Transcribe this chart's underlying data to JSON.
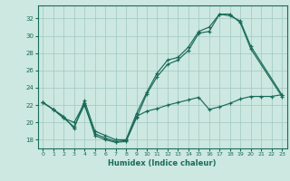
{
  "xlabel": "Humidex (Indice chaleur)",
  "xlim": [
    -0.5,
    23.5
  ],
  "ylim": [
    17,
    33.5
  ],
  "yticks": [
    18,
    20,
    22,
    24,
    26,
    28,
    30,
    32
  ],
  "xticks": [
    0,
    1,
    2,
    3,
    4,
    5,
    6,
    7,
    8,
    9,
    10,
    11,
    12,
    13,
    14,
    15,
    16,
    17,
    18,
    19,
    20,
    21,
    22,
    23
  ],
  "background_color": "#cce8e0",
  "grid_color": "#a0c8c0",
  "line_color": "#1a6b5a",
  "line1_x": [
    0,
    1,
    2,
    3,
    4,
    5,
    6,
    7,
    8,
    9,
    10,
    11,
    12,
    13,
    14,
    15,
    16,
    17,
    18,
    19,
    20,
    23
  ],
  "line1_y": [
    22.3,
    21.5,
    20.5,
    20.0,
    22.2,
    18.5,
    18.0,
    17.7,
    17.8,
    20.5,
    23.3,
    25.3,
    26.7,
    27.2,
    28.3,
    30.3,
    30.5,
    32.5,
    32.5,
    31.5,
    28.5,
    23.0
  ],
  "line2_x": [
    0,
    1,
    2,
    3,
    4,
    5,
    6,
    7,
    8,
    9,
    10,
    11,
    12,
    13,
    14,
    15,
    16,
    17,
    18,
    19,
    20,
    23
  ],
  "line2_y": [
    22.3,
    21.5,
    20.7,
    19.3,
    22.5,
    19.0,
    18.5,
    18.0,
    18.0,
    21.0,
    23.5,
    25.7,
    27.2,
    27.5,
    28.7,
    30.5,
    31.0,
    32.5,
    32.3,
    31.7,
    28.8,
    23.2
  ],
  "line3_x": [
    0,
    1,
    2,
    3,
    4,
    5,
    6,
    7,
    8,
    9,
    10,
    11,
    12,
    13,
    14,
    15,
    16,
    17,
    18,
    19,
    20,
    21,
    22,
    23
  ],
  "line3_y": [
    22.3,
    21.5,
    20.5,
    19.5,
    22.0,
    18.7,
    18.2,
    17.8,
    17.9,
    20.7,
    21.3,
    21.6,
    22.0,
    22.3,
    22.6,
    22.9,
    21.5,
    21.8,
    22.2,
    22.7,
    23.0,
    23.0,
    23.0,
    23.2
  ]
}
